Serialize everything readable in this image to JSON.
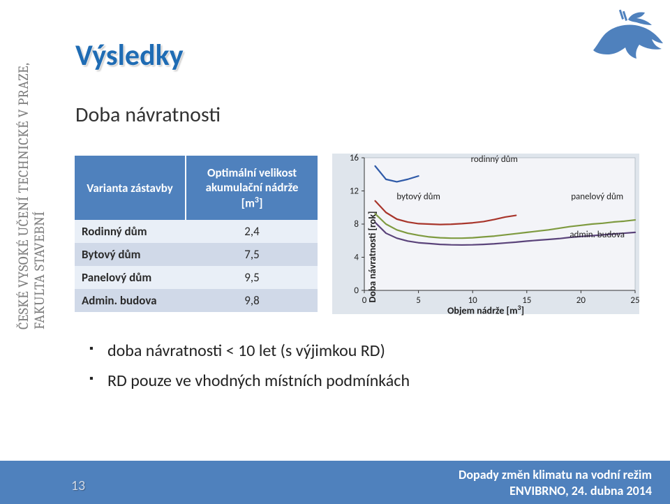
{
  "header": {
    "org_line": "ČESKÉ VYSOKÉ UČENÍ TECHNICKÉ V PRAZE, FAKULTA STAVEBNÍ",
    "title": "Výsledky",
    "subtitle": "Doba návratnosti"
  },
  "table": {
    "col1_header": "Varianta zástavby",
    "col2_header_l1": "Optimální velikost",
    "col2_header_l2": "akumulační nádrže",
    "col2_header_unit": "[m³]",
    "rows": [
      {
        "label": "Rodinný dům",
        "value": "2,4"
      },
      {
        "label": "Bytový dům",
        "value": "7,5"
      },
      {
        "label": "Panelový dům",
        "value": "9,5"
      },
      {
        "label": "Admin. budova",
        "value": "9,8"
      }
    ]
  },
  "chart": {
    "type": "line",
    "y_label": "Doba návratnosti [rok]",
    "x_label": "Objem nádrže [m³]",
    "xlim": [
      0,
      25
    ],
    "xtick_step": 5,
    "ylim": [
      0,
      16
    ],
    "ytick_step": 4,
    "background_color": "#dfe5ec",
    "plot_area_color": "#f3f4f8",
    "axis_color": "#333333",
    "tick_font_size": 13,
    "label_font_size": 14,
    "series_line_width": 2.2,
    "series": [
      {
        "name": "rodinný dům",
        "color": "#2f5aa8",
        "label_xy": [
          12,
          15.5
        ],
        "points": [
          [
            1,
            15
          ],
          [
            2,
            13.4
          ],
          [
            3,
            13.1
          ],
          [
            4,
            13.4
          ],
          [
            5,
            13.8
          ]
        ]
      },
      {
        "name": "bytový dům",
        "color": "#a8352b",
        "label_xy": [
          5,
          11
        ],
        "points": [
          [
            1,
            10.8
          ],
          [
            2,
            9.4
          ],
          [
            3,
            8.6
          ],
          [
            4,
            8.25
          ],
          [
            5,
            8.05
          ],
          [
            6,
            8.0
          ],
          [
            7,
            7.95
          ],
          [
            8,
            7.98
          ],
          [
            9,
            8.05
          ],
          [
            10,
            8.15
          ],
          [
            11,
            8.3
          ],
          [
            12,
            8.55
          ],
          [
            13,
            8.85
          ],
          [
            14,
            9.05
          ]
        ]
      },
      {
        "name": "panelový dům",
        "color": "#7e9a3f",
        "label_xy": [
          21.5,
          11
        ],
        "points": [
          [
            1,
            9.25
          ],
          [
            2,
            8.0
          ],
          [
            3,
            7.3
          ],
          [
            4,
            6.9
          ],
          [
            5,
            6.65
          ],
          [
            6,
            6.45
          ],
          [
            7,
            6.35
          ],
          [
            8,
            6.3
          ],
          [
            9,
            6.3
          ],
          [
            10,
            6.35
          ],
          [
            11,
            6.45
          ],
          [
            12,
            6.55
          ],
          [
            13,
            6.7
          ],
          [
            14,
            6.85
          ],
          [
            15,
            7.0
          ],
          [
            16,
            7.15
          ],
          [
            17,
            7.3
          ],
          [
            18,
            7.5
          ],
          [
            19,
            7.7
          ],
          [
            20,
            7.85
          ],
          [
            21,
            8.0
          ],
          [
            22,
            8.1
          ],
          [
            23,
            8.25
          ],
          [
            24,
            8.35
          ],
          [
            25,
            8.5
          ]
        ]
      },
      {
        "name": "admin. budova",
        "color": "#5a437a",
        "label_xy": [
          21.5,
          6.4
        ],
        "points": [
          [
            1,
            8.2
          ],
          [
            2,
            6.9
          ],
          [
            3,
            6.3
          ],
          [
            4,
            5.95
          ],
          [
            5,
            5.75
          ],
          [
            6,
            5.65
          ],
          [
            7,
            5.55
          ],
          [
            8,
            5.5
          ],
          [
            9,
            5.48
          ],
          [
            10,
            5.5
          ],
          [
            11,
            5.55
          ],
          [
            12,
            5.62
          ],
          [
            13,
            5.72
          ],
          [
            14,
            5.82
          ],
          [
            15,
            5.95
          ],
          [
            16,
            6.05
          ],
          [
            17,
            6.15
          ],
          [
            18,
            6.25
          ],
          [
            19,
            6.4
          ],
          [
            20,
            6.5
          ],
          [
            21,
            6.6
          ],
          [
            22,
            6.7
          ],
          [
            23,
            6.8
          ],
          [
            24,
            6.9
          ],
          [
            25,
            7.0
          ]
        ]
      }
    ]
  },
  "bullets": [
    "doba návratnosti < 10 let (s výjimkou RD)",
    "RD pouze ve vhodných místních podmínkách"
  ],
  "footer": {
    "page": "13",
    "line1": "Dopady změn klimatu na vodní režim",
    "line2": "ENVIBRNO, 24. dubna 2014"
  }
}
